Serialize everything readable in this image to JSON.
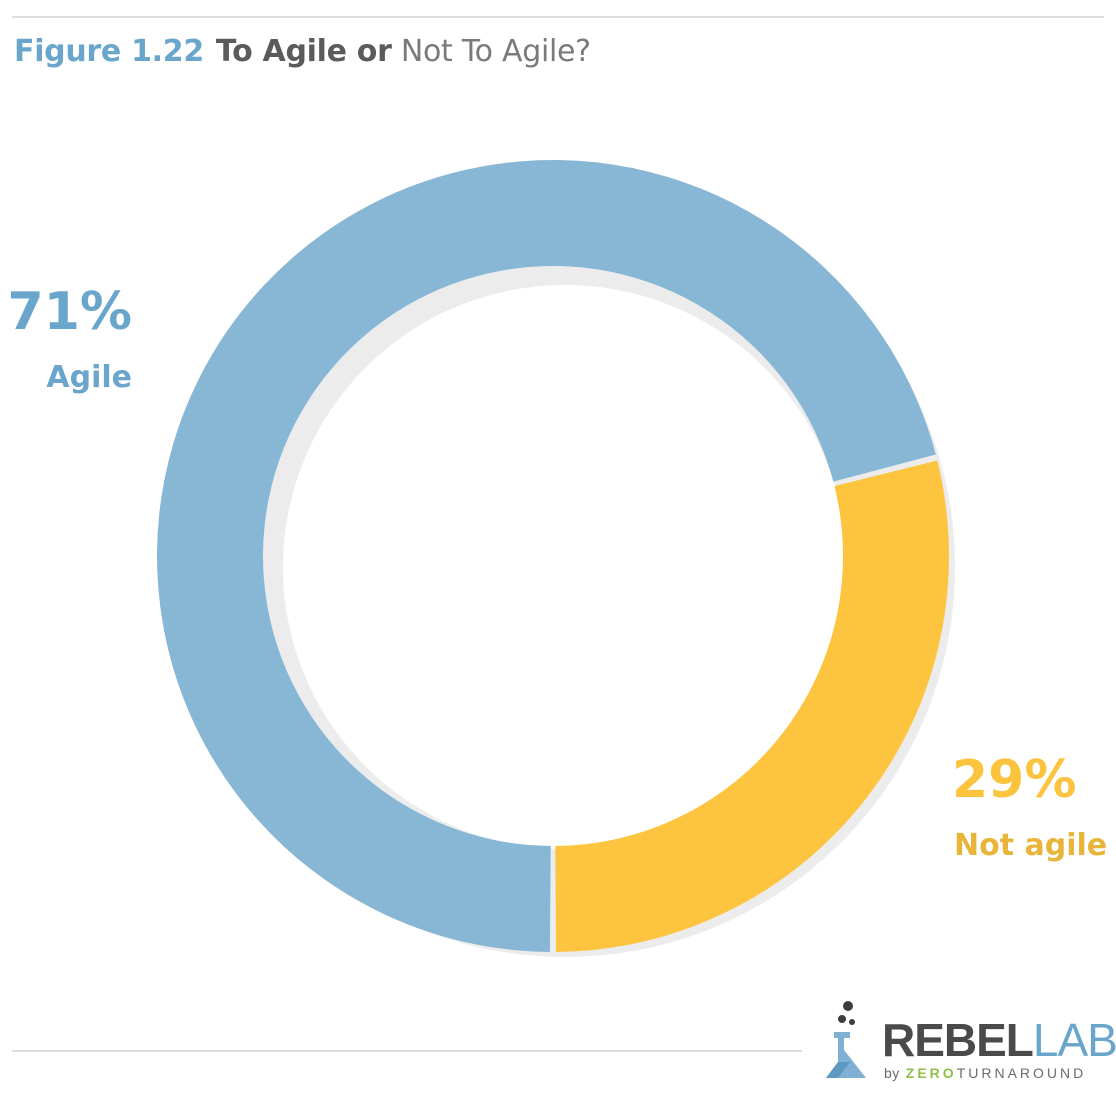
{
  "title": {
    "figure": "Figure 1.22",
    "bold_part": "To Agile or",
    "light_part": " Not To Agile?"
  },
  "chart_data": {
    "type": "pie",
    "style": "donut",
    "categories": [
      "Agile",
      "Not agile"
    ],
    "values": [
      71,
      29
    ],
    "value_labels": [
      "71%",
      "29%"
    ],
    "colors": [
      "#88b7d5",
      "#fdc43f"
    ],
    "title": "Figure 1.22 To Agile or Not To Agile?"
  },
  "logo": {
    "rebel": "REBEL",
    "labs": "LABS",
    "by": "by",
    "zero": "ZERO",
    "turnaround": "TURNAROUND"
  }
}
